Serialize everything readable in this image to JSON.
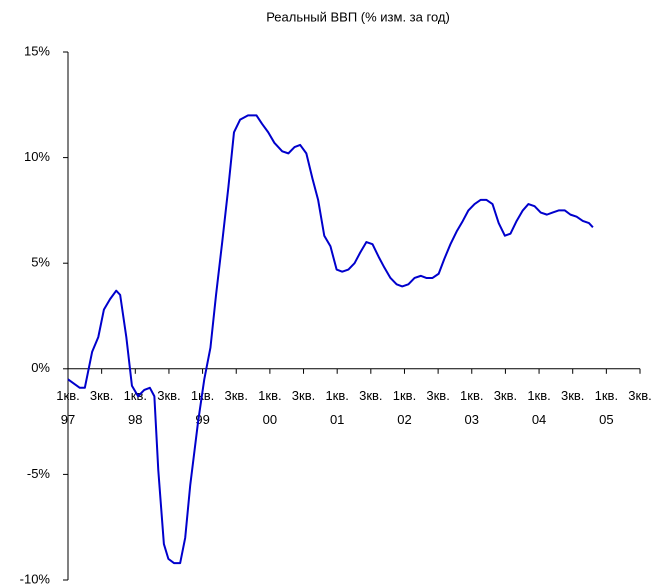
{
  "chart_data": {
    "type": "line",
    "title": "Реальный ВВП (% изм. за год)",
    "x": [
      0,
      2.1,
      3.0,
      4.3,
      5.4,
      6.4,
      7.5,
      8.6,
      9.3,
      10.4,
      11.4,
      12.5,
      13.6,
      14.6,
      15.4,
      16.1,
      17.1,
      17.9,
      18.9,
      20.0,
      20.9,
      21.8,
      23.2,
      24.3,
      25.4,
      26.4,
      27.5,
      28.6,
      29.6,
      30.7,
      32.1,
      33.6,
      34.6,
      35.7,
      36.8,
      38.2,
      39.3,
      40.4,
      41.4,
      42.5,
      43.6,
      44.6,
      45.7,
      46.8,
      47.9,
      48.9,
      50.0,
      51.1,
      52.1,
      53.2,
      54.3,
      55.4,
      56.4,
      57.5,
      58.6,
      59.6,
      60.7,
      61.8,
      62.9,
      63.9,
      65.0,
      66.1,
      67.1,
      68.2,
      69.3,
      70.4,
      71.4,
      72.5,
      73.6,
      74.6,
      75.7,
      76.8,
      77.9,
      78.9,
      80.0,
      81.1,
      82.1,
      83.2,
      84.3,
      85.4,
      86.4,
      87.5,
      88.6,
      89.6,
      90.7,
      91.8,
      92.9,
      93.6
    ],
    "series": [
      {
        "color": "#0000cc",
        "values": [
          -0.5,
          -0.9,
          -0.9,
          0.8,
          1.5,
          2.8,
          3.3,
          3.7,
          3.5,
          1.5,
          -0.8,
          -1.3,
          -1.0,
          -0.9,
          -1.3,
          -4.8,
          -8.3,
          -9.0,
          -9.2,
          -9.2,
          -8.0,
          -5.5,
          -2.5,
          -0.5,
          1.0,
          3.5,
          6.0,
          8.6,
          11.2,
          11.8,
          12.0,
          12.0,
          11.6,
          11.2,
          10.7,
          10.3,
          10.2,
          10.5,
          10.6,
          10.2,
          9.0,
          8.0,
          6.3,
          5.8,
          4.7,
          4.6,
          4.7,
          5.0,
          5.5,
          6.0,
          5.9,
          5.3,
          4.8,
          4.3,
          4.0,
          3.9,
          4.0,
          4.3,
          4.4,
          4.3,
          4.3,
          4.5,
          5.2,
          5.9,
          6.5,
          7.0,
          7.5,
          7.8,
          8.0,
          8.0,
          7.8,
          6.9,
          6.3,
          6.4,
          7.0,
          7.5,
          7.8,
          7.7,
          7.4,
          7.3,
          7.4,
          7.5,
          7.5,
          7.3,
          7.2,
          7.0,
          6.9,
          6.7
        ]
      }
    ],
    "xlim": [
      0,
      102
    ],
    "xticks": [
      {
        "value": 0,
        "label": "1кв.",
        "year": "97"
      },
      {
        "value": 6,
        "label": "3кв."
      },
      {
        "value": 12,
        "label": "1кв.",
        "year": "98"
      },
      {
        "value": 18,
        "label": "3кв."
      },
      {
        "value": 24,
        "label": "1кв.",
        "year": "99"
      },
      {
        "value": 30,
        "label": "3кв."
      },
      {
        "value": 36,
        "label": "1кв.",
        "year": "00"
      },
      {
        "value": 42,
        "label": "3кв."
      },
      {
        "value": 48,
        "label": "1кв.",
        "year": "01"
      },
      {
        "value": 54,
        "label": "3кв."
      },
      {
        "value": 60,
        "label": "1кв.",
        "year": "02"
      },
      {
        "value": 66,
        "label": "3кв."
      },
      {
        "value": 72,
        "label": "1кв.",
        "year": "03"
      },
      {
        "value": 78,
        "label": "3кв."
      },
      {
        "value": 84,
        "label": "1кв.",
        "year": "04"
      },
      {
        "value": 90,
        "label": "3кв."
      },
      {
        "value": 96,
        "label": "1кв.",
        "year": "05"
      },
      {
        "value": 102,
        "label": "3кв."
      }
    ],
    "ylim": [
      -10,
      15
    ],
    "yticks": [
      {
        "value": -10,
        "label": "-10%"
      },
      {
        "value": -5,
        "label": "-5%"
      },
      {
        "value": 0,
        "label": "0%"
      },
      {
        "value": 5,
        "label": "5%"
      },
      {
        "value": 10,
        "label": "10%"
      },
      {
        "value": 15,
        "label": "15%"
      }
    ]
  }
}
